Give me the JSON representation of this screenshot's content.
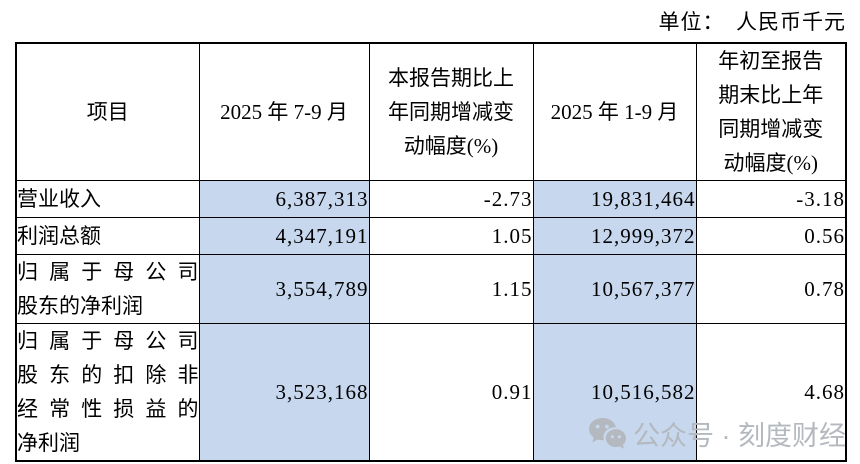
{
  "unit_label": "单位：　人民币千元",
  "table": {
    "headers": [
      "项目",
      "2025 年 7-9 月",
      "本报告期比上\n年同期增减变\n动幅度(%)",
      "2025 年 1-9 月",
      "年初至报告\n期末比上年\n同期增减变\n动幅度(%)"
    ],
    "rows": [
      {
        "cells": [
          "营业收入",
          "6,387,313",
          "-2.73",
          "19,831,464",
          "-3.18"
        ]
      },
      {
        "cells": [
          "利润总额",
          "4,347,191",
          "1.05",
          "12,999,372",
          "0.56"
        ]
      },
      {
        "cells": [
          "归属于母公司\n股东的净利润",
          "3,554,789",
          "1.15",
          "10,567,377",
          "0.78"
        ]
      },
      {
        "cells": [
          "归属于母公司\n股东的扣除非\n经常性损益的\n净利润",
          "3,523,168",
          "0.91",
          "10,516,582",
          "4.68"
        ]
      }
    ]
  },
  "watermark": {
    "icon": "wechat-icon",
    "label": "公众号 · 刻度财经"
  },
  "colors": {
    "highlight_blue": "#c7d7ee",
    "border": "#000000",
    "watermark_gray": "#b4b9bf"
  }
}
